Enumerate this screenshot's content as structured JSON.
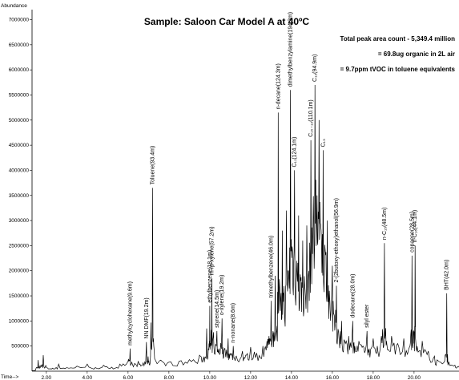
{
  "chart_data": {
    "type": "line",
    "title": "Sample:  Saloon Car Model A at 40ºC",
    "ylabel": "Abundance",
    "xlabel": "Time-->",
    "xlim": [
      1.3,
      22.2
    ],
    "ylim": [
      0,
      7200000
    ],
    "y_ticks": [
      500000,
      1000000,
      1500000,
      2000000,
      2500000,
      3000000,
      3500000,
      4000000,
      4500000,
      5000000,
      5500000,
      6000000,
      6500000,
      7000000
    ],
    "x_ticks": [
      "2.00",
      "4.00",
      "6.00",
      "8.00",
      "10.00",
      "12.00",
      "14.00",
      "16.00",
      "18.00",
      "20.00"
    ],
    "annotations": [
      "Total peak area count - 5,349.4 million",
      "= 69.8ug organic in 2L air",
      "= 9.7ppm tVOC in toluene equivalents"
    ],
    "series": [
      {
        "color": "#000000",
        "points": [
          [
            1.3,
            10000
          ],
          [
            1.5,
            60000
          ],
          [
            1.6,
            220000
          ],
          [
            1.7,
            70000
          ],
          [
            1.85,
            320000
          ],
          [
            2.0,
            80000
          ],
          [
            2.3,
            60000
          ],
          [
            2.6,
            140000
          ],
          [
            3.0,
            70000
          ],
          [
            3.5,
            100000
          ],
          [
            4.0,
            140000
          ],
          [
            4.4,
            70000
          ],
          [
            4.8,
            120000
          ],
          [
            5.2,
            80000
          ],
          [
            5.6,
            140000
          ],
          [
            6.0,
            200000
          ],
          [
            6.1,
            450000
          ],
          [
            6.2,
            150000
          ],
          [
            6.5,
            200000
          ],
          [
            6.7,
            120000
          ],
          [
            6.9,
            580000
          ],
          [
            7.0,
            180000
          ],
          [
            7.1,
            300000
          ],
          [
            7.2,
            3650000
          ],
          [
            7.3,
            250000
          ],
          [
            7.6,
            220000
          ],
          [
            8.0,
            180000
          ],
          [
            8.5,
            200000
          ],
          [
            9.0,
            230000
          ],
          [
            9.5,
            320000
          ],
          [
            9.7,
            280000
          ],
          [
            9.85,
            850000
          ],
          [
            9.95,
            420000
          ],
          [
            10.0,
            1300000
          ],
          [
            10.05,
            500000
          ],
          [
            10.1,
            1850000
          ],
          [
            10.2,
            500000
          ],
          [
            10.35,
            800000
          ],
          [
            10.45,
            450000
          ],
          [
            10.6,
            1050000
          ],
          [
            10.7,
            420000
          ],
          [
            10.9,
            650000
          ],
          [
            11.0,
            350000
          ],
          [
            11.15,
            500000
          ],
          [
            11.3,
            300000
          ],
          [
            11.6,
            400000
          ],
          [
            11.8,
            320000
          ],
          [
            12.0,
            480000
          ],
          [
            12.3,
            360000
          ],
          [
            12.6,
            500000
          ],
          [
            12.8,
            600000
          ],
          [
            12.9,
            700000
          ],
          [
            13.0,
            1400000
          ],
          [
            13.1,
            800000
          ],
          [
            13.2,
            1900000
          ],
          [
            13.3,
            900000
          ],
          [
            13.35,
            5150000
          ],
          [
            13.45,
            1200000
          ],
          [
            13.55,
            2800000
          ],
          [
            13.65,
            1500000
          ],
          [
            13.75,
            3200000
          ],
          [
            13.85,
            2000000
          ],
          [
            13.95,
            5600000
          ],
          [
            14.05,
            2400000
          ],
          [
            14.15,
            4000000
          ],
          [
            14.25,
            2200000
          ],
          [
            14.35,
            3100000
          ],
          [
            14.45,
            1800000
          ],
          [
            14.55,
            2600000
          ],
          [
            14.65,
            1700000
          ],
          [
            14.75,
            2900000
          ],
          [
            14.85,
            2000000
          ],
          [
            14.95,
            4600000
          ],
          [
            15.05,
            2900000
          ],
          [
            15.15,
            5700000
          ],
          [
            15.25,
            3500000
          ],
          [
            15.35,
            5000000
          ],
          [
            15.45,
            2800000
          ],
          [
            15.55,
            4400000
          ],
          [
            15.65,
            2400000
          ],
          [
            15.75,
            3000000
          ],
          [
            15.85,
            1600000
          ],
          [
            16.0,
            2100000
          ],
          [
            16.1,
            1100000
          ],
          [
            16.2,
            1700000
          ],
          [
            16.3,
            800000
          ],
          [
            16.45,
            1000000
          ],
          [
            16.6,
            600000
          ],
          [
            16.8,
            700000
          ],
          [
            17.0,
            1000000
          ],
          [
            17.1,
            500000
          ],
          [
            17.3,
            600000
          ],
          [
            17.5,
            500000
          ],
          [
            17.7,
            800000
          ],
          [
            17.8,
            450000
          ],
          [
            18.0,
            650000
          ],
          [
            18.2,
            500000
          ],
          [
            18.4,
            700000
          ],
          [
            18.55,
            2550000
          ],
          [
            18.65,
            600000
          ],
          [
            18.9,
            700000
          ],
          [
            19.2,
            550000
          ],
          [
            19.5,
            650000
          ],
          [
            19.8,
            500000
          ],
          [
            19.9,
            2300000
          ],
          [
            20.0,
            550000
          ],
          [
            20.05,
            2500000
          ],
          [
            20.15,
            500000
          ],
          [
            20.4,
            600000
          ],
          [
            20.7,
            400000
          ],
          [
            21.0,
            300000
          ],
          [
            21.2,
            200000
          ],
          [
            21.5,
            200000
          ],
          [
            21.6,
            1550000
          ],
          [
            21.7,
            180000
          ],
          [
            22.0,
            120000
          ],
          [
            22.2,
            100000
          ]
        ]
      }
    ],
    "peak_labels": [
      {
        "text": "methylcyclohexane(9.6m)",
        "x": 6.1,
        "y": 450000
      },
      {
        "text": "NN DMF(19.2m)",
        "x": 6.9,
        "y": 580000
      },
      {
        "text": "Toluene(93.4m)",
        "x": 7.2,
        "y": 3650000
      },
      {
        "text": "ethylbenzene(18.1m)",
        "x": 10.0,
        "y": 1300000
      },
      {
        "text": "m-/p-xylene(57.2m)",
        "x": 10.1,
        "y": 1850000
      },
      {
        "text": "styrene(14.5m)",
        "x": 10.35,
        "y": 800000
      },
      {
        "text": "o-xylene(19.2m)",
        "x": 10.6,
        "y": 1050000
      },
      {
        "text": "n-nonane(8.6m)",
        "x": 11.15,
        "y": 500000
      },
      {
        "text": "trimethylbenzene(46.0m)",
        "x": 13.0,
        "y": 1400000
      },
      {
        "text": "n-decane(124.3m)",
        "x": 13.35,
        "y": 5150000
      },
      {
        "text": "dimethylbenzylamine(194.3m)",
        "x": 13.95,
        "y": 5600000
      },
      {
        "text": "C₁₁(124.1m)",
        "x": 14.15,
        "y": 4000000
      },
      {
        "text": "C₁₀₋₁₂(110.1m)",
        "x": 14.95,
        "y": 4600000
      },
      {
        "text": "C₁₂(94.9m)",
        "x": 15.15,
        "y": 5700000
      },
      {
        "text": "C₁₃",
        "x": 15.55,
        "y": 4400000
      },
      {
        "text": "2-(2butoxy-ethoxy)ethanol(56.9m)",
        "x": 16.2,
        "y": 1700000
      },
      {
        "text": "dodecane(28.0m)",
        "x": 17.0,
        "y": 1000000
      },
      {
        "text": "silyl ester",
        "x": 17.7,
        "y": 800000
      },
      {
        "text": "n-C₁₅(48.5m)",
        "x": 18.55,
        "y": 2550000
      },
      {
        "text": "copaene(28.5m)",
        "x": 19.9,
        "y": 2300000
      },
      {
        "text": "n-C₁₆(44.1m)",
        "x": 20.05,
        "y": 2500000
      },
      {
        "text": "BHT(42.0m)",
        "x": 21.6,
        "y": 1550000
      }
    ]
  }
}
